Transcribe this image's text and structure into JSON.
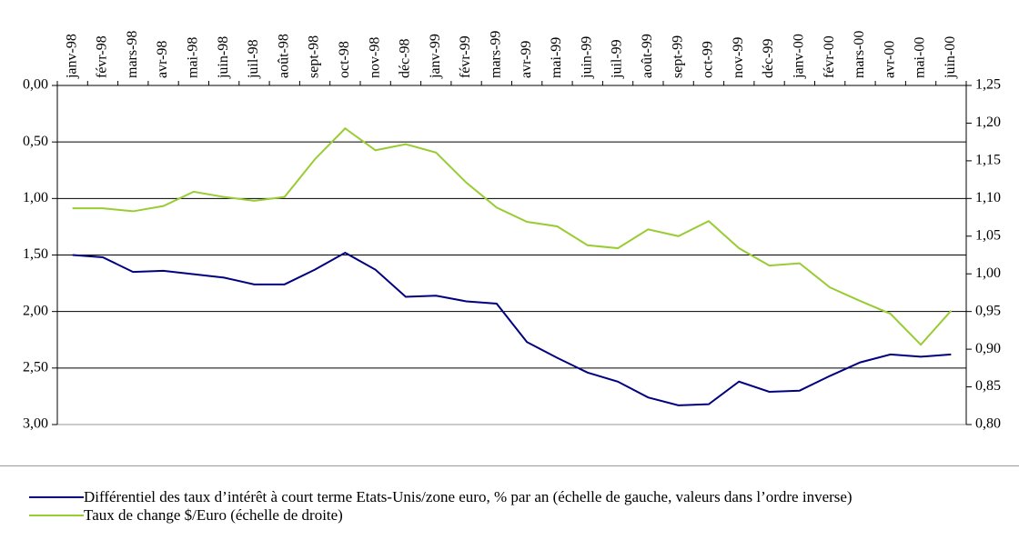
{
  "chart_data": {
    "type": "line",
    "categories": [
      "janv-98",
      "févr-98",
      "mars-98",
      "avr-98",
      "mai-98",
      "juin-98",
      "juil-98",
      "août-98",
      "sept-98",
      "oct-98",
      "nov-98",
      "déc-98",
      "janv-99",
      "févr-99",
      "mars-99",
      "avr-99",
      "mai-99",
      "juin-99",
      "juil-99",
      "août-99",
      "sept-99",
      "oct-99",
      "nov-99",
      "déc-99",
      "janv-00",
      "févr-00",
      "mars-00",
      "avr-00",
      "mai-00",
      "juin-00"
    ],
    "series": [
      {
        "name": "Différentiel des taux d’intérêt à court terme Etats-Unis/zone euro, % par an (échelle de gauche, valeurs dans l’ordre inverse)",
        "color": "#000080",
        "axis": "y",
        "values": [
          1.5,
          1.52,
          1.65,
          1.64,
          1.67,
          1.7,
          1.76,
          1.76,
          1.63,
          1.48,
          1.63,
          1.87,
          1.86,
          1.91,
          1.93,
          2.27,
          2.41,
          2.54,
          2.62,
          2.76,
          2.83,
          2.82,
          2.62,
          2.71,
          2.7,
          2.57,
          2.45,
          2.38,
          2.4,
          2.38
        ]
      },
      {
        "name": "Taux de change $/Euro (échelle de droite)",
        "color": "#99cc33",
        "axis": "y2",
        "values": [
          1.087,
          1.087,
          1.083,
          1.09,
          1.109,
          1.102,
          1.097,
          1.102,
          1.152,
          1.193,
          1.164,
          1.172,
          1.161,
          1.121,
          1.088,
          1.069,
          1.063,
          1.038,
          1.034,
          1.059,
          1.05,
          1.07,
          1.034,
          1.011,
          1.014,
          0.982,
          0.964,
          0.947,
          0.906,
          0.951
        ]
      }
    ],
    "ylim": [
      3.0,
      0.0
    ],
    "yticks": [
      {
        "value": 0,
        "label": "0,00"
      },
      {
        "value": 0.5,
        "label": "0,50"
      },
      {
        "value": 1,
        "label": "1,00"
      },
      {
        "value": 1.5,
        "label": "1,50"
      },
      {
        "value": 2,
        "label": "2,00"
      },
      {
        "value": 2.5,
        "label": "2,50"
      },
      {
        "value": 3,
        "label": "3,00"
      }
    ],
    "y2lim": [
      0.8,
      1.25
    ],
    "y2ticks": [
      {
        "value": 0.8,
        "label": "0,80"
      },
      {
        "value": 0.85,
        "label": "0,85"
      },
      {
        "value": 0.9,
        "label": "0,90"
      },
      {
        "value": 0.95,
        "label": "0,95"
      },
      {
        "value": 1,
        "label": "1,00"
      },
      {
        "value": 1.05,
        "label": "1,05"
      },
      {
        "value": 1.1,
        "label": "1,10"
      },
      {
        "value": 1.15,
        "label": "1,15"
      },
      {
        "value": 1.2,
        "label": "1,20"
      },
      {
        "value": 1.25,
        "label": "1,25"
      }
    ],
    "grid": true
  }
}
